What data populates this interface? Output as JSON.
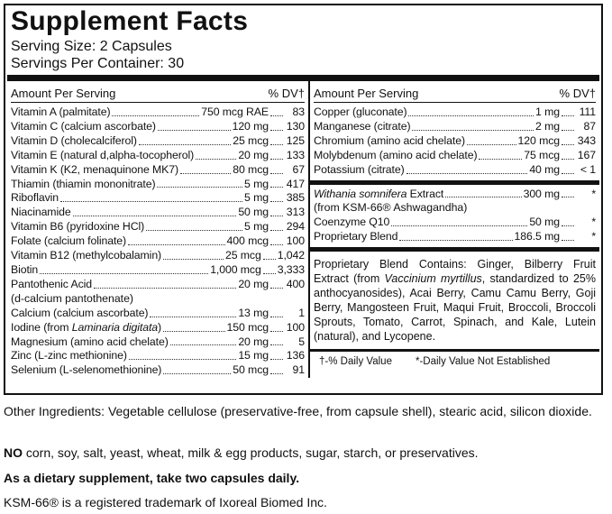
{
  "header": {
    "title": "Supplement Facts",
    "serving_size": "Serving Size: 2 Capsules",
    "servings_per_container": "Servings Per Container: 30"
  },
  "left_column": {
    "amount_header": "Amount Per Serving",
    "dv_header": "% DV†",
    "rows": [
      {
        "name": "Vitamin A (palmitate)",
        "amount": "750 mcg RAE",
        "dv": "83"
      },
      {
        "name": "Vitamin C (calcium ascorbate)",
        "amount": "120 mg",
        "dv": "130"
      },
      {
        "name": "Vitamin D (cholecalciferol)",
        "amount": "25 mcg",
        "dv": "125"
      },
      {
        "name": "Vitamin E (natural d,alpha-tocopherol)",
        "amount": "20 mg",
        "dv": "133"
      },
      {
        "name": "Vitamin K (K2, menaquinone MK7)",
        "amount": "80 mcg",
        "dv": "67"
      },
      {
        "name": "Thiamin (thiamin mononitrate)",
        "amount": "5 mg",
        "dv": "417"
      },
      {
        "name": "Riboflavin",
        "amount": "5 mg",
        "dv": "385"
      },
      {
        "name": "Niacinamide",
        "amount": "50 mg",
        "dv": "313"
      },
      {
        "name": "Vitamin B6 (pyridoxine HCl)",
        "amount": "5 mg",
        "dv": "294"
      },
      {
        "name": "Folate (calcium folinate)",
        "amount": "400 mcg",
        "dv": "100"
      },
      {
        "name": "Vitamin B12 (methylcobalamin)",
        "amount": "25 mcg",
        "dv": "1,042"
      },
      {
        "name": "Biotin",
        "amount": "1,000 mcg",
        "dv": "3,333"
      },
      {
        "name": "Pantothenic Acid",
        "amount": "20 mg",
        "dv": "400",
        "sub": "(d-calcium pantothenate)"
      },
      {
        "name": "Calcium (calcium ascorbate)",
        "amount": "13 mg",
        "dv": "1"
      },
      {
        "name": [
          {
            "text": "Iodine (from "
          },
          {
            "text": "Laminaria digitata",
            "italic": true
          },
          {
            "text": ")"
          }
        ],
        "amount": "150 mcg",
        "dv": "100"
      },
      {
        "name": "Magnesium (amino acid chelate)",
        "amount": "20 mg",
        "dv": "5"
      },
      {
        "name": "Zinc (L-zinc methionine)",
        "amount": "15 mg",
        "dv": "136"
      },
      {
        "name": "Selenium (L-selenomethionine)",
        "amount": "50 mcg",
        "dv": "91"
      }
    ]
  },
  "right_column": {
    "amount_header": "Amount Per Serving",
    "dv_header": "% DV†",
    "groups": [
      {
        "rows": [
          {
            "name": "Copper (gluconate)",
            "amount": "1 mg",
            "dv": "111"
          },
          {
            "name": "Manganese (citrate)",
            "amount": "2 mg",
            "dv": "87"
          },
          {
            "name": "Chromium (amino acid chelate)",
            "amount": "120 mcg",
            "dv": "343"
          },
          {
            "name": "Molybdenum (amino acid chelate)",
            "amount": "75 mcg",
            "dv": "167"
          },
          {
            "name": "Potassium (citrate)",
            "amount": "40 mg",
            "dv": "< 1"
          }
        ]
      },
      {
        "rows": [
          {
            "name": [
              {
                "text": "Withania somnifera",
                "italic": true
              },
              {
                "text": " Extract"
              }
            ],
            "amount": "300 mg",
            "dv": "*",
            "sub": "(from KSM-66® Ashwagandha)"
          },
          {
            "name": "Coenzyme Q10",
            "amount": "50 mg",
            "dv": "*"
          },
          {
            "name": "Proprietary Blend",
            "amount": "186.5 mg",
            "dv": "*"
          }
        ]
      }
    ],
    "blend_contains": [
      {
        "text": "Proprietary Blend Contains: Ginger, Bilberry Fruit Extract (from "
      },
      {
        "text": "Vaccinium myrtillus",
        "italic": true
      },
      {
        "text": ", standardized to 25% anthocyanosides), Acai Berry, Camu Camu Berry, Goji Berry, Mangosteen Fruit, Maqui Fruit, Broccoli, Broccoli Sprouts, Tomato, Carrot, Spinach, and Kale, Lutein (natural), and Lycopene."
      }
    ],
    "footnotes": [
      "†-% Daily Value",
      "*-Daily Value Not Established"
    ]
  },
  "other_ingredients": "Other Ingredients: Vegetable cellulose (preservative-free, from capsule shell), stearic acid, silicon dioxide.",
  "allergen_note": {
    "bold": "NO",
    "text": " corn, soy, salt, yeast, wheat, milk & egg products, sugar, starch, or preservatives."
  },
  "directions": "As a dietary supplement, take two capsules daily.",
  "trademark": "KSM-66® is a registered trademark of Ixoreal Biomed Inc."
}
